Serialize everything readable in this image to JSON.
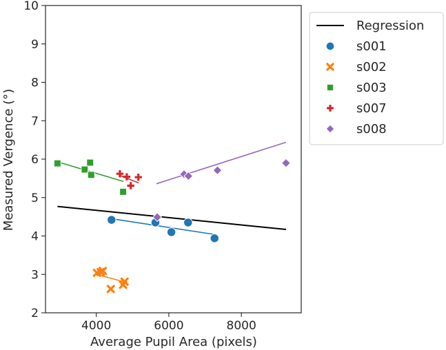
{
  "chart_data": {
    "type": "scatter",
    "xlabel": "Average Pupil Area (pixels)",
    "ylabel": "Measured Vergence (°)",
    "xlim": [
      2600,
      9650
    ],
    "ylim": [
      2,
      10
    ],
    "xticks": [
      4000,
      6000,
      8000
    ],
    "yticks": [
      2,
      3,
      4,
      5,
      6,
      7,
      8,
      9,
      10
    ],
    "legend_position": "outside-right",
    "regression": {
      "name": "Regression",
      "color": "#000000",
      "x": [
        2930,
        9230
      ],
      "y": [
        4.77,
        4.17
      ]
    },
    "series": [
      {
        "name": "s001",
        "marker": "circle",
        "color": "#1f77b4",
        "x": [
          4420,
          5630,
          6070,
          6530,
          7260
        ],
        "y": [
          4.42,
          4.35,
          4.1,
          4.35,
          3.94
        ],
        "fit": {
          "x": [
            4420,
            7260
          ],
          "y": [
            4.45,
            4.04
          ]
        }
      },
      {
        "name": "s002",
        "marker": "x",
        "color": "#ff7f0e",
        "x": [
          4020,
          4120,
          4180,
          4400,
          4740,
          4780
        ],
        "y": [
          3.04,
          3.06,
          3.09,
          2.62,
          2.73,
          2.81
        ],
        "fit": {
          "x": [
            4000,
            4790
          ],
          "y": [
            3.0,
            2.8
          ]
        }
      },
      {
        "name": "s003",
        "marker": "square",
        "color": "#2ca02c",
        "x": [
          2930,
          3680,
          3830,
          3860,
          4740
        ],
        "y": [
          5.89,
          5.73,
          5.91,
          5.59,
          5.15
        ],
        "fit": {
          "x": [
            2930,
            4750
          ],
          "y": [
            5.93,
            5.42
          ]
        }
      },
      {
        "name": "s007",
        "marker": "plus",
        "color": "#d62728",
        "x": [
          4650,
          4840,
          4950,
          5160
        ],
        "y": [
          5.62,
          5.54,
          5.31,
          5.53
        ],
        "fit": {
          "x": [
            4640,
            5170
          ],
          "y": [
            5.58,
            5.38
          ]
        }
      },
      {
        "name": "s008",
        "marker": "diamond",
        "color": "#9467bd",
        "x": [
          5680,
          6420,
          6540,
          7340,
          9230
        ],
        "y": [
          4.49,
          5.61,
          5.56,
          5.71,
          5.9
        ],
        "fit": {
          "x": [
            5660,
            9230
          ],
          "y": [
            5.36,
            6.44
          ]
        }
      }
    ]
  }
}
